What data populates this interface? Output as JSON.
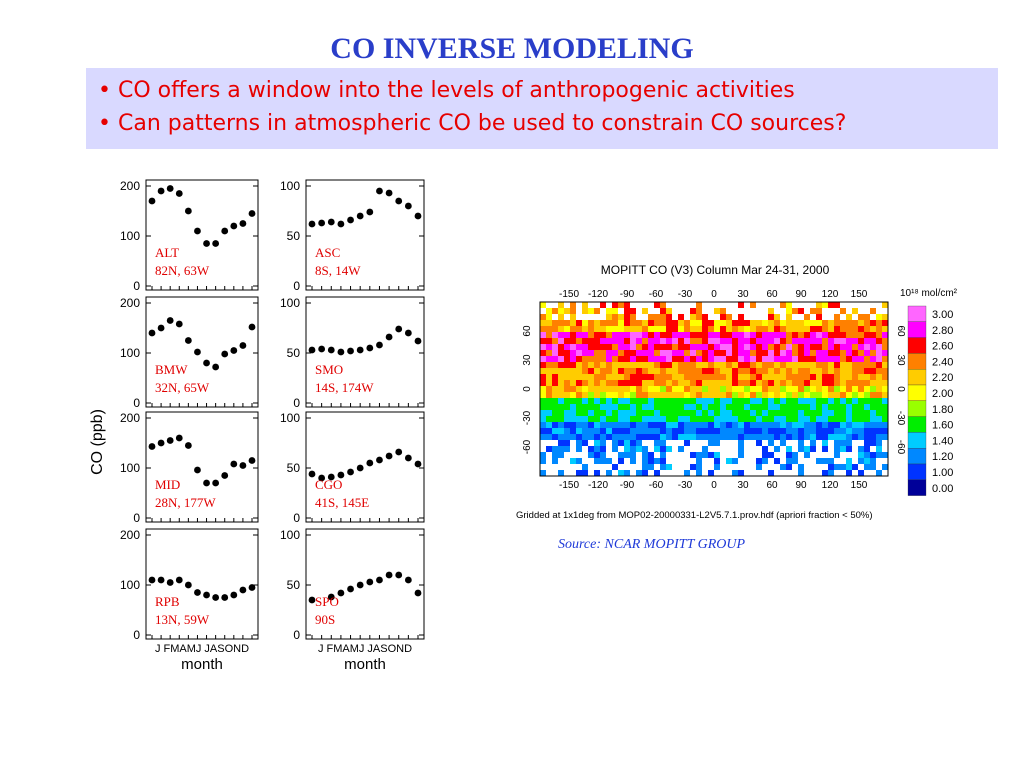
{
  "title": "CO INVERSE MODELING",
  "bullets": [
    "• CO offers a window into the levels of anthropogenic activities",
    "• Can patterns in atmospheric CO be used to constrain CO sources?"
  ],
  "source": "Source: NCAR MOPITT GROUP",
  "colors": {
    "title": "#2a3ec9",
    "bullets": "#e60000",
    "bullet_bg": "#d9d9ff",
    "station_label": "#e00000",
    "source": "#1f3ad8"
  },
  "chart_data": [
    {
      "type": "scatter",
      "station": "ALT",
      "location": "82N, 63W",
      "ylabel": "CO (ppb)",
      "xlabel": "month",
      "x": [
        "J",
        "F",
        "M",
        "A",
        "M",
        "J",
        "J",
        "A",
        "S",
        "O",
        "N",
        "D"
      ],
      "y": [
        170,
        190,
        195,
        185,
        150,
        110,
        85,
        85,
        110,
        120,
        125,
        145
      ],
      "ylim": [
        0,
        200
      ],
      "yticks": [
        0,
        100,
        200
      ]
    },
    {
      "type": "scatter",
      "station": "ASC",
      "location": "8S, 14W",
      "ylabel": "CO (ppb)",
      "xlabel": "month",
      "x": [
        "J",
        "F",
        "M",
        "A",
        "M",
        "J",
        "J",
        "A",
        "S",
        "O",
        "N",
        "D"
      ],
      "y": [
        62,
        63,
        64,
        62,
        66,
        70,
        74,
        95,
        93,
        85,
        80,
        70
      ],
      "ylim": [
        0,
        100
      ],
      "yticks": [
        0,
        50,
        100
      ]
    },
    {
      "type": "scatter",
      "station": "BMW",
      "location": "32N, 65W",
      "ylabel": "CO (ppb)",
      "xlabel": "month",
      "x": [
        "J",
        "F",
        "M",
        "A",
        "M",
        "J",
        "J",
        "A",
        "S",
        "O",
        "N",
        "D"
      ],
      "y": [
        140,
        150,
        165,
        158,
        125,
        102,
        80,
        72,
        98,
        105,
        115,
        152
      ],
      "ylim": [
        0,
        200
      ],
      "yticks": [
        0,
        100,
        200
      ]
    },
    {
      "type": "scatter",
      "station": "SMO",
      "location": "14S, 174W",
      "ylabel": "CO (ppb)",
      "xlabel": "month",
      "x": [
        "J",
        "F",
        "M",
        "A",
        "M",
        "J",
        "J",
        "A",
        "S",
        "O",
        "N",
        "D"
      ],
      "y": [
        53,
        54,
        53,
        51,
        52,
        53,
        55,
        58,
        66,
        74,
        70,
        62
      ],
      "ylim": [
        0,
        100
      ],
      "yticks": [
        0,
        50,
        100
      ]
    },
    {
      "type": "scatter",
      "station": "MID",
      "location": "28N, 177W",
      "ylabel": "CO (ppb)",
      "xlabel": "month",
      "x": [
        "J",
        "F",
        "M",
        "A",
        "M",
        "J",
        "J",
        "A",
        "S",
        "O",
        "N",
        "D"
      ],
      "y": [
        143,
        150,
        155,
        160,
        145,
        96,
        70,
        70,
        85,
        108,
        105,
        115
      ],
      "ylim": [
        0,
        200
      ],
      "yticks": [
        0,
        100,
        200
      ]
    },
    {
      "type": "scatter",
      "station": "CGO",
      "location": "41S, 145E",
      "ylabel": "CO (ppb)",
      "xlabel": "month",
      "x": [
        "J",
        "F",
        "M",
        "A",
        "M",
        "J",
        "J",
        "A",
        "S",
        "O",
        "N",
        "D"
      ],
      "y": [
        44,
        40,
        41,
        43,
        46,
        50,
        55,
        58,
        62,
        66,
        60,
        54
      ],
      "ylim": [
        0,
        100
      ],
      "yticks": [
        0,
        50,
        100
      ]
    },
    {
      "type": "scatter",
      "station": "RPB",
      "location": "13N, 59W",
      "ylabel": "CO (ppb)",
      "xlabel": "month",
      "x": [
        "J",
        "F",
        "M",
        "A",
        "M",
        "J",
        "J",
        "A",
        "S",
        "O",
        "N",
        "D"
      ],
      "y": [
        110,
        110,
        105,
        110,
        100,
        85,
        80,
        75,
        75,
        80,
        90,
        95
      ],
      "ylim": [
        0,
        200
      ],
      "yticks": [
        0,
        100,
        200
      ]
    },
    {
      "type": "scatter",
      "station": "SPO",
      "location": "90S",
      "ylabel": "CO (ppb)",
      "xlabel": "month",
      "x": [
        "J",
        "F",
        "M",
        "A",
        "M",
        "J",
        "J",
        "A",
        "S",
        "O",
        "N",
        "D"
      ],
      "y": [
        35,
        null,
        38,
        42,
        46,
        50,
        53,
        55,
        60,
        60,
        55,
        42
      ],
      "ylim": [
        0,
        100
      ],
      "yticks": [
        0,
        50,
        100
      ]
    },
    {
      "type": "heatmap",
      "title": "MOPITT CO (V3) Column Mar 24-31, 2000",
      "xticks": [
        "-150",
        "-120",
        "-90",
        "-60",
        "-30",
        "0",
        "30",
        "60",
        "90",
        "120",
        "150"
      ],
      "yticks": [
        "60",
        "30",
        "0",
        "-30",
        "-60"
      ],
      "colorbar_unit": "10¹⁸ mol/cm²",
      "colorbar_values": [
        "3.00",
        "2.80",
        "2.60",
        "2.40",
        "2.20",
        "2.00",
        "1.80",
        "1.60",
        "1.40",
        "1.20",
        "1.00",
        "0.00"
      ],
      "colorbar_colors": [
        "#ff66ff",
        "#ff00ff",
        "#ff0000",
        "#ff8000",
        "#ffcc00",
        "#ffff00",
        "#99ff00",
        "#00ee00",
        "#00ccff",
        "#0088ff",
        "#0033ff",
        "#000099"
      ],
      "footnote": "Gridded at 1x1deg from MOP02-20000331-L2V5.7.1.prov.hdf (apriori fraction < 50%)"
    }
  ]
}
